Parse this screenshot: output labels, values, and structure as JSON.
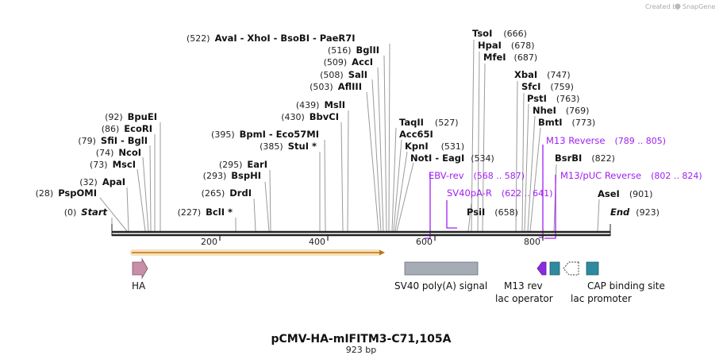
{
  "credit": {
    "prefix": "Created by",
    "brand": "SnapGene"
  },
  "title": "pCMV-HA-mIFITM3-C71,105A",
  "length_label": "923 bp",
  "sites": [
    {
      "id": "start",
      "pos": "(0)",
      "name": "Start",
      "italic": true
    },
    {
      "id": "psp",
      "pos": "(28)",
      "name": "PspOMI"
    },
    {
      "id": "apa",
      "pos": "(32)",
      "name": "ApaI"
    },
    {
      "id": "msc",
      "pos": "(73)",
      "name": "MscI"
    },
    {
      "id": "nco",
      "pos": "(74)",
      "name": "NcoI"
    },
    {
      "id": "sfi",
      "pos": "(79)",
      "name": "SfiI",
      "extra": " - BglI"
    },
    {
      "id": "eco",
      "pos": "(86)",
      "name": "EcoRI"
    },
    {
      "id": "bpu",
      "pos": "(92)",
      "name": "BpuEI"
    },
    {
      "id": "bcl",
      "pos": "(227)",
      "name": "BclI *"
    },
    {
      "id": "drd",
      "pos": "(265)",
      "name": "DrdI"
    },
    {
      "id": "bsph",
      "pos": "(293)",
      "name": "BspHI"
    },
    {
      "id": "ear",
      "pos": "(295)",
      "name": "EarI"
    },
    {
      "id": "stu",
      "pos": "(385)",
      "name": "StuI *"
    },
    {
      "id": "bpm",
      "pos": "(395)",
      "name": "BpmI",
      "extra": " - Eco57MI"
    },
    {
      "id": "bbv",
      "pos": "(430)",
      "name": "BbvCI"
    },
    {
      "id": "msl",
      "pos": "(439)",
      "name": "MslI"
    },
    {
      "id": "afl",
      "pos": "(503)",
      "name": "AflIII"
    },
    {
      "id": "sal",
      "pos": "(508)",
      "name": "SalI"
    },
    {
      "id": "acc",
      "pos": "(509)",
      "name": "AccI"
    },
    {
      "id": "bgl",
      "pos": "(516)",
      "name": "BglII"
    },
    {
      "id": "ava",
      "pos": "(522)",
      "name": "AvaI",
      "extra": " - XhoI  - BsoBI  - PaeR7I"
    },
    {
      "id": "taq",
      "pos": "(527)",
      "name": "TaqII",
      "left": true
    },
    {
      "id": "acc65",
      "pos": "",
      "name": "Acc65I",
      "left": true
    },
    {
      "id": "kpn",
      "pos": "(531)",
      "name": "KpnI",
      "left": true
    },
    {
      "id": "not",
      "pos": "(534)",
      "name": "NotI",
      "extra": " - EagI",
      "left": true
    },
    {
      "id": "psi",
      "pos": "(658)",
      "name": "PsiI",
      "left": true
    },
    {
      "id": "tso",
      "pos": "(666)",
      "name": "TsoI",
      "left": true
    },
    {
      "id": "hpa",
      "pos": "(678)",
      "name": "HpaI",
      "left": true
    },
    {
      "id": "mfe",
      "pos": "(687)",
      "name": "MfeI",
      "left": true
    },
    {
      "id": "xba",
      "pos": "(747)",
      "name": "XbaI",
      "left": true
    },
    {
      "id": "sfc",
      "pos": "(759)",
      "name": "SfcI",
      "left": true
    },
    {
      "id": "pst",
      "pos": "(763)",
      "name": "PstI",
      "left": true
    },
    {
      "id": "nhe",
      "pos": "(769)",
      "name": "NheI",
      "left": true
    },
    {
      "id": "bmt",
      "pos": "(773)",
      "name": "BmtI",
      "left": true
    },
    {
      "id": "bsr",
      "pos": "(822)",
      "name": "BsrBI",
      "left": true
    },
    {
      "id": "ase",
      "pos": "(901)",
      "name": "AseI",
      "left": true
    },
    {
      "id": "end",
      "pos": "(923)",
      "name": "End",
      "italic": true,
      "left": true
    }
  ],
  "primers": [
    {
      "id": "m13rev",
      "name": "M13 Reverse",
      "range": "(789 .. 805)"
    },
    {
      "id": "ebv",
      "name": "EBV-rev",
      "range": "(568 .. 587)"
    },
    {
      "id": "m13puc",
      "name": "M13/pUC Reverse",
      "range": "(802 .. 824)"
    },
    {
      "id": "sv40pa",
      "name": "SV40pA-R",
      "range": "(622 .. 641)"
    }
  ],
  "ticks": [
    "200",
    "400",
    "600",
    "800"
  ],
  "features": [
    {
      "id": "ha",
      "label": "HA",
      "color": "#c98fa9"
    },
    {
      "id": "sv40",
      "label": "SV40 poly(A) signal",
      "color": "#a6acb5"
    },
    {
      "id": "m13revf",
      "label": "M13 rev",
      "color": "#8a2be2"
    },
    {
      "id": "lacop",
      "label": "lac operator",
      "color": "#2f8aa0"
    },
    {
      "id": "lacprom",
      "label": "lac promoter",
      "color": "#ffffff"
    },
    {
      "id": "cap",
      "label": "CAP binding site",
      "color": "#2f8aa0"
    }
  ],
  "orf_color": "#e8a33b"
}
